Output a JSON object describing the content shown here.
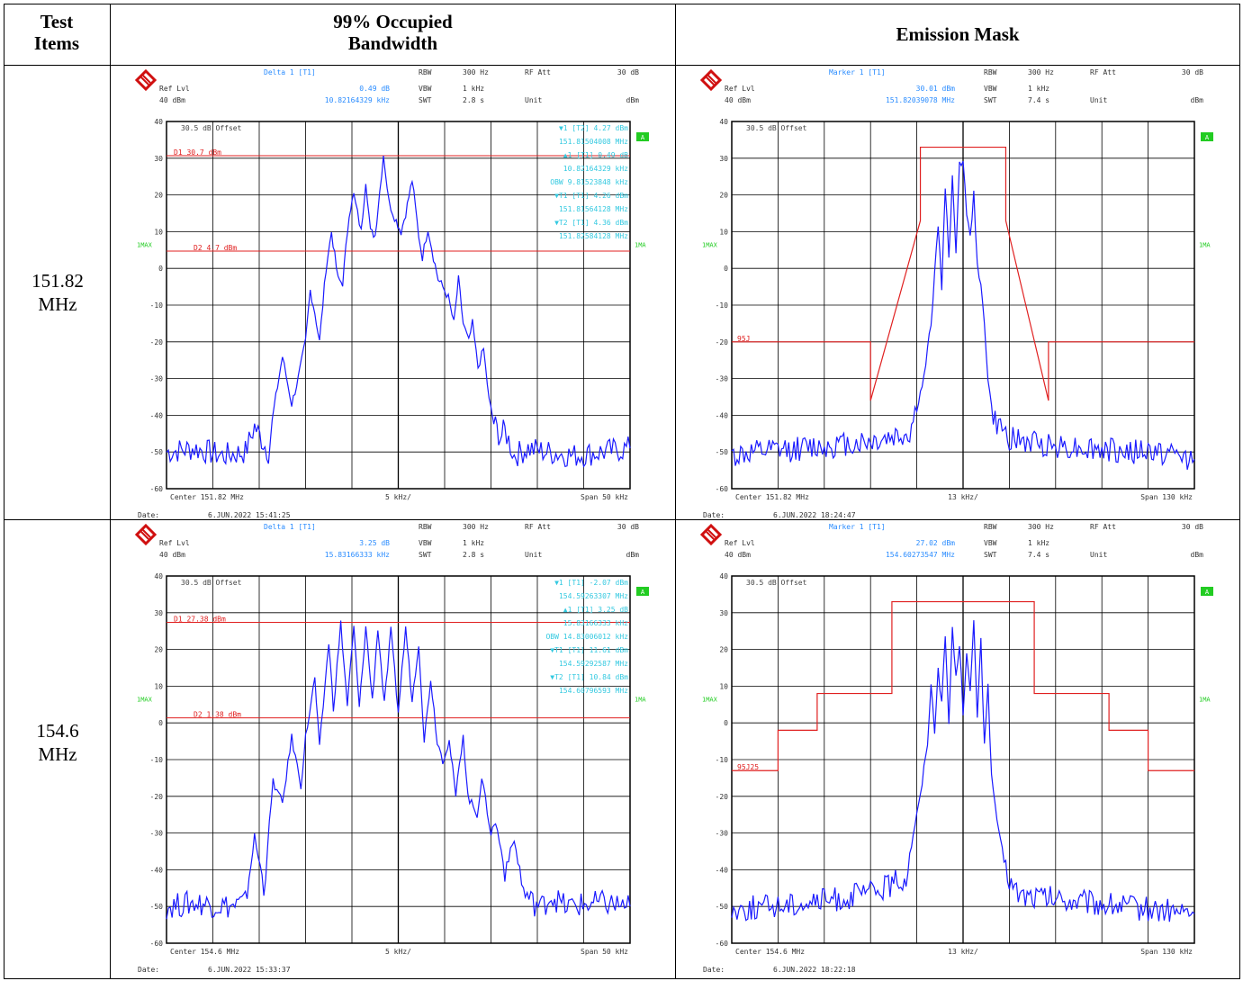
{
  "header": {
    "col1_line1": "Test",
    "col1_line2": "Items",
    "col2_line1": "99% Occupied",
    "col2_line2": "Bandwidth",
    "col3": "Emission Mask"
  },
  "rows": [
    {
      "freq_line1": "151.82",
      "freq_line2": "MHz",
      "obw": {
        "info": {
          "marker_title": "Delta 1 [T1]",
          "ref_lvl_label": "Ref Lvl",
          "ref_lvl": "40 dBm",
          "marker_val1": "0.49 dB",
          "marker_val2": "10.82164329 kHz",
          "rbw_label": "RBW",
          "rbw": "300 Hz",
          "rf_att_label": "RF Att",
          "rf_att": "30 dB",
          "vbw_label": "VBW",
          "vbw": "1 kHz",
          "swt_label": "SWT",
          "swt": "2.8 s",
          "unit_label": "Unit",
          "unit": "dBm"
        },
        "offset_text": "30.5  dB Offset",
        "d1_label": "D1  30.7  dBm",
        "d2_label": "D2  4.7  dBm",
        "marker_rows": [
          "▼1  [T2]          4.27  dBm",
          "151.81504008  MHz",
          "▲1  [T1]          0.49  dB",
          "10.82164329  kHz",
          "OBW   9.81523848  kHz",
          "▼T1  [T1]        4.26  dBm",
          "151.81564128  MHz",
          "▼T2  [T1]        4.36  dBm",
          "151.82584128  MHz"
        ],
        "center": "Center 151.82 MHz",
        "div": "5 kHz/",
        "span": "Span 50 kHz",
        "date_label": "Date:",
        "date": "6.JUN.2022  15:41:25",
        "trace_label": "1MAX",
        "side_label": "1MA",
        "a_badge": "A"
      },
      "mask": {
        "info": {
          "marker_title": "Marker 1 [T1]",
          "ref_lvl_label": "Ref Lvl",
          "ref_lvl": "40 dBm",
          "marker_val1": "30.01 dBm",
          "marker_val2": "151.82039078 MHz",
          "rbw_label": "RBW",
          "rbw": "300 Hz",
          "rf_att_label": "RF Att",
          "rf_att": "30 dB",
          "vbw_label": "VBW",
          "vbw": "1 kHz",
          "swt_label": "SWT",
          "swt": "7.4 s",
          "unit_label": "Unit",
          "unit": "dBm"
        },
        "offset_text": "30.5  dB Offset",
        "limit_label": "95J",
        "center": "Center 151.82 MHz",
        "div": "13 kHz/",
        "span": "Span 130 kHz",
        "date_label": "Date:",
        "date": "6.JUN.2022  18:24:47",
        "trace_label": "1MAX",
        "side_label": "1MA",
        "a_badge": "A"
      }
    },
    {
      "freq_line1": "154.6",
      "freq_line2": "MHz",
      "obw": {
        "info": {
          "marker_title": "Delta 1 [T1]",
          "ref_lvl_label": "Ref Lvl",
          "ref_lvl": "40 dBm",
          "marker_val1": "3.25 dB",
          "marker_val2": "15.83166333 kHz",
          "rbw_label": "RBW",
          "rbw": "300 Hz",
          "rf_att_label": "RF Att",
          "rf_att": "30 dB",
          "vbw_label": "VBW",
          "vbw": "1 kHz",
          "swt_label": "SWT",
          "swt": "2.8 s",
          "unit_label": "Unit",
          "unit": "dBm"
        },
        "offset_text": "30.5  dB Offset",
        "d1_label": "D1  27.38  dBm",
        "d2_label": "D2  1.38  dBm",
        "marker_rows": [
          "▼1  [T1]        -2.07  dBm",
          "154.59263307  MHz",
          "▲1  [T1]          3.25  dB",
          "15.83166333  kHz",
          "OBW   14.83006012  kHz",
          "▼T1  [T1]        11.61  dBm",
          "154.59292587  MHz",
          "▼T2  [T1]        10.84  dBm",
          "154.60796593  MHz"
        ],
        "center": "Center 154.6 MHz",
        "div": "5 kHz/",
        "span": "Span 50 kHz",
        "date_label": "Date:",
        "date": "6.JUN.2022  15:33:37",
        "trace_label": "1MAX",
        "side_label": "1MA",
        "a_badge": "A"
      },
      "mask": {
        "info": {
          "marker_title": "Marker 1 [T1]",
          "ref_lvl_label": "Ref Lvl",
          "ref_lvl": "40 dBm",
          "marker_val1": "27.02 dBm",
          "marker_val2": "154.60273547 MHz",
          "rbw_label": "RBW",
          "rbw": "300 Hz",
          "rf_att_label": "RF Att",
          "rf_att": "30 dB",
          "vbw_label": "VBW",
          "vbw": "1 kHz",
          "swt_label": "SWT",
          "swt": "7.4 s",
          "unit_label": "Unit",
          "unit": "dBm"
        },
        "offset_text": "30.5  dB Offset",
        "limit_label": "95J25",
        "center": "Center 154.6 MHz",
        "div": "13 kHz/",
        "span": "Span 130 kHz",
        "date_label": "Date:",
        "date": "6.JUN.2022  18:22:18",
        "trace_label": "1MAX",
        "side_label": "1MA",
        "a_badge": "A"
      }
    }
  ],
  "y_ticks": [
    "40",
    "30",
    "20",
    "10",
    "0",
    "-10",
    "-20",
    "-30",
    "-40",
    "-50",
    "-60"
  ],
  "colors": {
    "trace": "#1a1aff",
    "limit": "#e02020",
    "marker_text": "#33c9e0",
    "label_green": "#22cc22",
    "info_blue": "#2a8cff"
  },
  "chart_data": [
    {
      "type": "line",
      "title": "",
      "xlabel": "",
      "ylabel": "",
      "x_range_khz": [
        -25,
        25
      ],
      "ylim": [
        -60,
        40
      ],
      "series": [
        {
          "x": [
            -25,
            -22,
            -19,
            -16.5,
            -15.5,
            -14,
            -13.2,
            -12.5,
            -11.5,
            -10.8,
            -10,
            -9.5,
            -9,
            -8.5,
            -7.8,
            -7.2,
            -6.5,
            -6,
            -5.3,
            -4.8,
            -4,
            -3.5,
            -3,
            -2.5,
            -2,
            -1.6,
            -1,
            -0.4,
            0.3,
            0.8,
            1.5,
            2.2,
            2.6,
            3.2,
            3.8,
            4.3,
            4.8,
            5.4,
            6,
            6.5,
            7,
            7.6,
            8,
            8.6,
            9.2,
            9.8,
            10.3,
            11,
            11.5,
            12.5,
            14,
            16,
            19,
            22,
            25
          ],
          "values": [
            -50,
            -49,
            -51,
            -50,
            -43,
            -50,
            -35,
            -24,
            -37,
            -30,
            -20,
            -6,
            -12,
            -20,
            0,
            10,
            -3,
            -4,
            15,
            20,
            10,
            24,
            10,
            9,
            21,
            31,
            18,
            14,
            10,
            15,
            24,
            9,
            3,
            11,
            3,
            -3,
            -5,
            -8,
            -15,
            -3,
            -15,
            -20,
            -15,
            -27,
            -22,
            -36,
            -42,
            -46,
            -44,
            -51,
            -49,
            -50,
            -51,
            -50,
            -49
          ]
        }
      ]
    },
    {
      "type": "line",
      "title": "",
      "xlabel": "",
      "ylabel": "",
      "x_range_khz": [
        -65,
        65
      ],
      "ylim": [
        -60,
        40
      ],
      "series": [
        {
          "x": [
            -65,
            -55,
            -45,
            -35,
            -25,
            -15,
            -13,
            -11,
            -9,
            -7,
            -6,
            -5,
            -4,
            -3,
            -2,
            -1,
            0,
            1,
            2,
            3,
            4,
            5,
            6,
            7,
            8,
            9,
            11,
            13,
            15,
            25,
            35,
            45,
            55,
            65
          ],
          "values": [
            -51,
            -50,
            -49,
            -48,
            -47,
            -45,
            -38,
            -30,
            -15,
            12,
            -5,
            22,
            3,
            25,
            5,
            28,
            30,
            15,
            8,
            20,
            2,
            -5,
            -15,
            -30,
            -38,
            -42,
            -44,
            -46,
            -47,
            -48,
            -49,
            -50,
            -50,
            -52
          ]
        }
      ]
    },
    {
      "type": "line",
      "title": "",
      "xlabel": "",
      "ylabel": "",
      "x_range_khz": [
        -25,
        25
      ],
      "ylim": [
        -60,
        40
      ],
      "series": [
        {
          "x": [
            -25,
            -22,
            -18,
            -16.5,
            -15.5,
            -14.5,
            -13.5,
            -12.5,
            -11.5,
            -10.5,
            -10,
            -9,
            -8.5,
            -7.5,
            -7,
            -6.2,
            -5.5,
            -4.8,
            -4.2,
            -3.5,
            -2.8,
            -2.2,
            -1.5,
            -0.8,
            0,
            0.8,
            1.5,
            2.2,
            2.8,
            3.5,
            4.2,
            4.8,
            5.5,
            6.2,
            7,
            7.5,
            8.5,
            9,
            10,
            10.5,
            11.5,
            12.5,
            13.5,
            14.5,
            15.5,
            16.5,
            18,
            22,
            25
          ],
          "values": [
            -50,
            -49,
            -50,
            -49,
            -31,
            -45,
            -16,
            -22,
            -4,
            -17,
            -4,
            12,
            -7,
            22,
            4,
            27,
            5,
            26,
            4,
            26,
            6,
            26,
            5,
            25,
            3,
            26,
            6,
            22,
            -5,
            12,
            -5,
            -10,
            -5,
            -20,
            -3,
            -20,
            -25,
            -15,
            -30,
            -27,
            -40,
            -32,
            -46,
            -49,
            -50,
            -47,
            -50,
            -49,
            -50
          ]
        }
      ]
    },
    {
      "type": "line",
      "title": "",
      "xlabel": "",
      "ylabel": "",
      "x_range_khz": [
        -65,
        65
      ],
      "ylim": [
        -60,
        40
      ],
      "series": [
        {
          "x": [
            -65,
            -55,
            -45,
            -35,
            -25,
            -20,
            -16,
            -14,
            -12,
            -10,
            -9,
            -8,
            -7,
            -6,
            -5,
            -4,
            -3,
            -2,
            -1,
            0,
            1,
            2,
            3,
            4,
            5,
            6,
            7,
            8,
            9,
            10,
            12,
            14,
            16,
            25,
            35,
            45,
            55,
            65
          ],
          "values": [
            -51,
            -50,
            -49,
            -48,
            -46,
            -44,
            -42,
            -30,
            -20,
            -5,
            10,
            -2,
            15,
            5,
            24,
            0,
            26,
            12,
            22,
            3,
            20,
            8,
            27,
            2,
            22,
            -5,
            10,
            -15,
            -22,
            -30,
            -40,
            -45,
            -47,
            -48,
            -49,
            -50,
            -51,
            -52
          ]
        }
      ]
    }
  ]
}
